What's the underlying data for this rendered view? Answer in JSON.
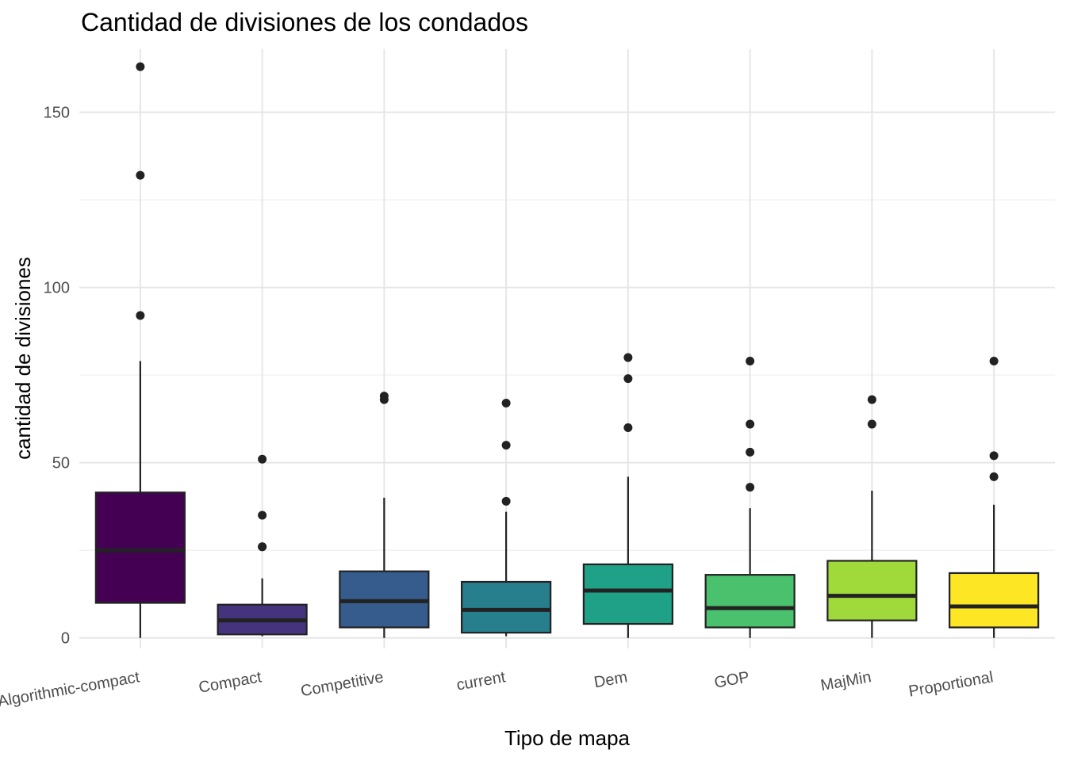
{
  "chart_data": {
    "type": "boxplot",
    "title": "Cantidad de divisiones de los condados",
    "xlabel": "Tipo de mapa",
    "ylabel": "cantidad de divisiones",
    "ylim": [
      -3,
      168
    ],
    "yticks": [
      0,
      50,
      100,
      150
    ],
    "y_minor_ticks": [
      25,
      75,
      125
    ],
    "grid": true,
    "legend": "none",
    "categories": [
      "Algorithmic-compact",
      "Compact",
      "Competitive",
      "current",
      "Dem",
      "GOP",
      "MajMin",
      "Proportional"
    ],
    "boxes": [
      {
        "category": "Algorithmic-compact",
        "whisker_low": 0,
        "q1": 10,
        "median": 25,
        "q3": 41.5,
        "whisker_high": 79,
        "outliers": [
          92,
          132,
          163
        ],
        "color": "#440154"
      },
      {
        "category": "Compact",
        "whisker_low": 0.5,
        "q1": 1,
        "median": 5,
        "q3": 9.5,
        "whisker_high": 17,
        "outliers": [
          26,
          26,
          35,
          51
        ],
        "color": "#46337E"
      },
      {
        "category": "Competitive",
        "whisker_low": 0,
        "q1": 3,
        "median": 10.5,
        "q3": 19,
        "whisker_high": 40,
        "outliers": [
          68,
          69
        ],
        "color": "#365C8D"
      },
      {
        "category": "current",
        "whisker_low": 0.5,
        "q1": 1.5,
        "median": 8,
        "q3": 16,
        "whisker_high": 36,
        "outliers": [
          39,
          55,
          67
        ],
        "color": "#277F8E"
      },
      {
        "category": "Dem",
        "whisker_low": 0,
        "q1": 4,
        "median": 13.5,
        "q3": 21,
        "whisker_high": 46,
        "outliers": [
          60,
          74,
          80
        ],
        "color": "#1FA187"
      },
      {
        "category": "GOP",
        "whisker_low": 0,
        "q1": 3,
        "median": 8.5,
        "q3": 18,
        "whisker_high": 37,
        "outliers": [
          43,
          53,
          61,
          79
        ],
        "color": "#4AC16D"
      },
      {
        "category": "MajMin",
        "whisker_low": 0,
        "q1": 5,
        "median": 12,
        "q3": 22,
        "whisker_high": 42,
        "outliers": [
          61,
          68
        ],
        "color": "#9FDA3A"
      },
      {
        "category": "Proportional",
        "whisker_low": 0,
        "q1": 3,
        "median": 9,
        "q3": 18.5,
        "whisker_high": 38,
        "outliers": [
          46,
          52,
          79
        ],
        "color": "#FDE725"
      }
    ],
    "colors": {
      "outline": "#222222",
      "outlier": "#222222",
      "grid": "#e6e6e6"
    }
  }
}
